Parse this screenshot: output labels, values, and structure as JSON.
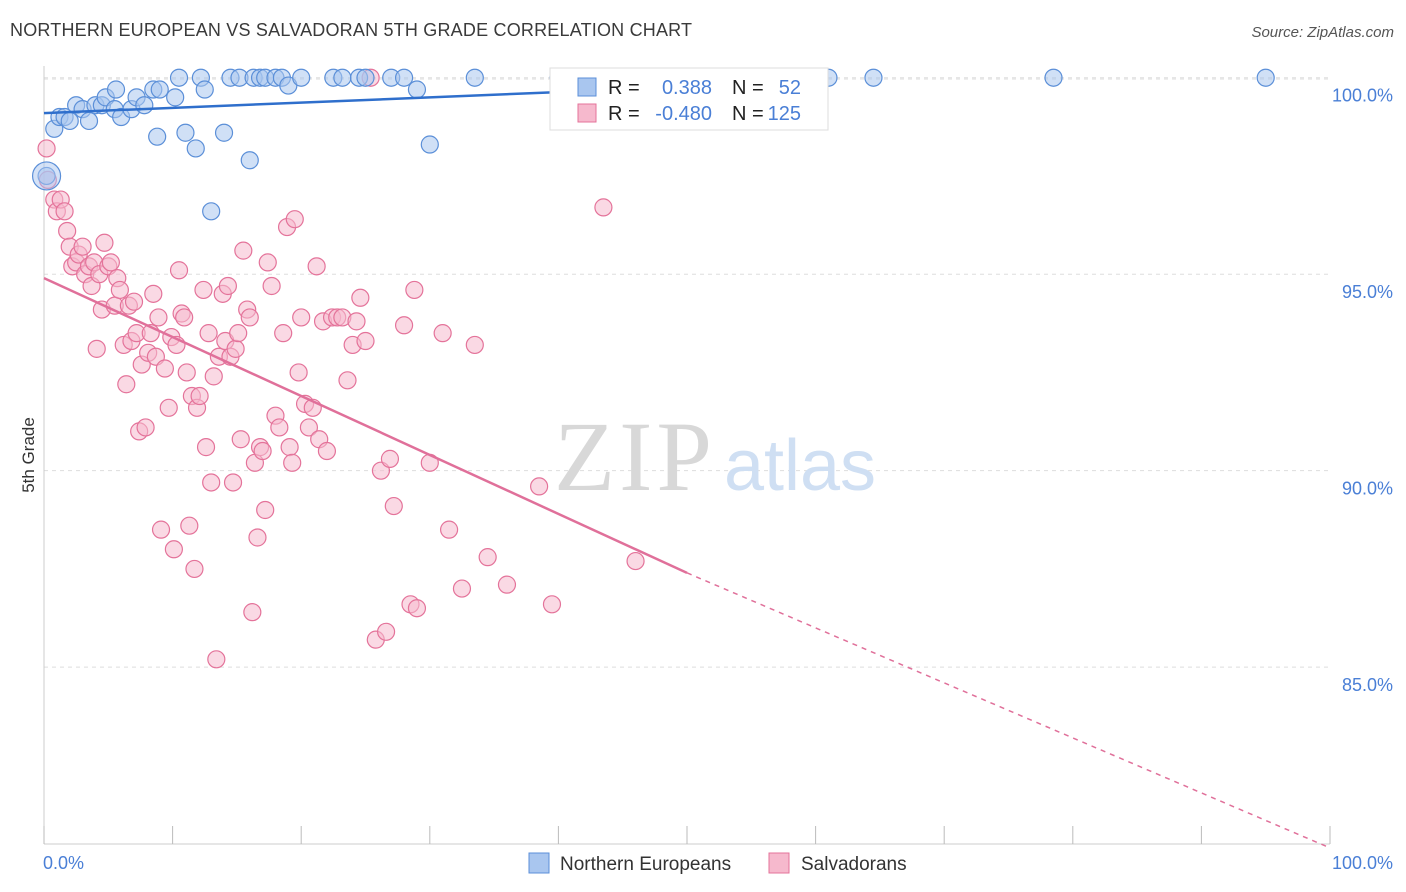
{
  "title": "NORTHERN EUROPEAN VS SALVADORAN 5TH GRADE CORRELATION CHART",
  "source": "Source: ZipAtlas.com",
  "watermark": {
    "zip": "ZIP",
    "atlas": "atlas"
  },
  "colors": {
    "blue": "#5b8fd8",
    "blue_fill": "#a9c6ef",
    "blue_line": "#2f6fcc",
    "pink": "#e4739a",
    "pink_fill": "#f6b9cd",
    "pink_line": "#e0709a",
    "tick_text": "#4a7fd6",
    "grid": "#dddddd"
  },
  "legend": {
    "r_label": "R =",
    "n_label": "N =",
    "rows": [
      {
        "r": "0.388",
        "n": "52"
      },
      {
        "r": "-0.480",
        "n": "125"
      }
    ]
  },
  "bottom_legend": [
    "Northern Europeans",
    "Salvadorans"
  ],
  "chart_data": {
    "type": "scatter",
    "title": "NORTHERN EUROPEAN VS SALVADORAN 5TH GRADE CORRELATION CHART",
    "xlabel": "",
    "ylabel": "5th Grade",
    "xlim": [
      0,
      100
    ],
    "ylim": [
      80.5,
      100.4
    ],
    "x_tick_labels": [
      "0.0%",
      "100.0%"
    ],
    "y_ticks": [
      85,
      90,
      95,
      100
    ],
    "y_tick_labels": [
      "85.0%",
      "90.0%",
      "95.0%",
      "100.0%"
    ],
    "grid": true,
    "legend_position": "top-center",
    "series": [
      {
        "name": "Northern Europeans",
        "r": 0.388,
        "n": 52,
        "trend": {
          "x0": 0,
          "y0": 99.1,
          "x1": 60,
          "y1": 99.9
        },
        "points": [
          [
            0.2,
            97.5
          ],
          [
            0.8,
            98.7
          ],
          [
            1.2,
            99.0
          ],
          [
            1.6,
            99.0
          ],
          [
            2.0,
            98.9
          ],
          [
            2.5,
            99.3
          ],
          [
            3.0,
            99.2
          ],
          [
            3.5,
            98.9
          ],
          [
            4.0,
            99.3
          ],
          [
            4.5,
            99.3
          ],
          [
            4.8,
            99.5
          ],
          [
            5.5,
            99.2
          ],
          [
            5.6,
            99.7
          ],
          [
            6.0,
            99.0
          ],
          [
            6.8,
            99.2
          ],
          [
            7.2,
            99.5
          ],
          [
            7.8,
            99.3
          ],
          [
            8.5,
            99.7
          ],
          [
            8.8,
            98.5
          ],
          [
            9.0,
            99.7
          ],
          [
            10.2,
            99.5
          ],
          [
            10.5,
            100.0
          ],
          [
            11.0,
            98.6
          ],
          [
            11.8,
            98.2
          ],
          [
            12.2,
            100.0
          ],
          [
            12.5,
            99.7
          ],
          [
            13.0,
            96.6
          ],
          [
            14.0,
            98.6
          ],
          [
            14.5,
            100.0
          ],
          [
            15.2,
            100.0
          ],
          [
            16.0,
            97.9
          ],
          [
            16.3,
            100.0
          ],
          [
            16.8,
            100.0
          ],
          [
            17.2,
            100.0
          ],
          [
            18.0,
            100.0
          ],
          [
            18.5,
            100.0
          ],
          [
            19.0,
            99.8
          ],
          [
            20.0,
            100.0
          ],
          [
            22.5,
            100.0
          ],
          [
            23.2,
            100.0
          ],
          [
            24.5,
            100.0
          ],
          [
            25.0,
            100.0
          ],
          [
            27.0,
            100.0
          ],
          [
            28.0,
            100.0
          ],
          [
            29.0,
            99.7
          ],
          [
            30.0,
            98.3
          ],
          [
            33.5,
            100.0
          ],
          [
            40.0,
            100.0
          ],
          [
            61.0,
            100.0
          ],
          [
            64.5,
            100.0
          ],
          [
            78.5,
            100.0
          ],
          [
            95.0,
            100.0
          ]
        ]
      },
      {
        "name": "Salvadorans",
        "r": -0.48,
        "n": 125,
        "trend": {
          "x0": 0,
          "y0": 94.9,
          "x1": 50,
          "y1": 87.4,
          "dashed_to_x": 100,
          "dashed_to_y": 80.4
        },
        "points": [
          [
            0.2,
            98.2
          ],
          [
            0.3,
            97.4
          ],
          [
            0.8,
            96.9
          ],
          [
            1.0,
            96.6
          ],
          [
            1.3,
            96.9
          ],
          [
            1.6,
            96.6
          ],
          [
            1.8,
            96.1
          ],
          [
            2.0,
            95.7
          ],
          [
            2.2,
            95.2
          ],
          [
            2.5,
            95.3
          ],
          [
            2.7,
            95.5
          ],
          [
            3.0,
            95.7
          ],
          [
            3.2,
            95.0
          ],
          [
            3.5,
            95.2
          ],
          [
            3.7,
            94.7
          ],
          [
            3.9,
            95.3
          ],
          [
            4.1,
            93.1
          ],
          [
            4.3,
            95.0
          ],
          [
            4.5,
            94.1
          ],
          [
            4.7,
            95.8
          ],
          [
            5.0,
            95.2
          ],
          [
            5.2,
            95.3
          ],
          [
            5.5,
            94.2
          ],
          [
            5.7,
            94.9
          ],
          [
            5.9,
            94.6
          ],
          [
            6.2,
            93.2
          ],
          [
            6.4,
            92.2
          ],
          [
            6.6,
            94.2
          ],
          [
            6.8,
            93.3
          ],
          [
            7.0,
            94.3
          ],
          [
            7.2,
            93.5
          ],
          [
            7.4,
            91.0
          ],
          [
            7.6,
            92.7
          ],
          [
            7.9,
            91.1
          ],
          [
            8.1,
            93.0
          ],
          [
            8.3,
            93.5
          ],
          [
            8.5,
            94.5
          ],
          [
            8.7,
            92.9
          ],
          [
            8.9,
            93.9
          ],
          [
            9.1,
            88.5
          ],
          [
            9.4,
            92.6
          ],
          [
            9.7,
            91.6
          ],
          [
            9.9,
            93.4
          ],
          [
            10.1,
            88.0
          ],
          [
            10.3,
            93.2
          ],
          [
            10.5,
            95.1
          ],
          [
            10.7,
            94.0
          ],
          [
            10.9,
            93.9
          ],
          [
            11.1,
            92.5
          ],
          [
            11.3,
            88.6
          ],
          [
            11.5,
            91.9
          ],
          [
            11.7,
            87.5
          ],
          [
            11.9,
            91.6
          ],
          [
            12.1,
            91.9
          ],
          [
            12.4,
            94.6
          ],
          [
            12.6,
            90.6
          ],
          [
            12.8,
            93.5
          ],
          [
            13.0,
            89.7
          ],
          [
            13.2,
            92.4
          ],
          [
            13.4,
            85.2
          ],
          [
            13.6,
            92.9
          ],
          [
            13.9,
            94.5
          ],
          [
            14.1,
            93.3
          ],
          [
            14.3,
            94.7
          ],
          [
            14.5,
            92.9
          ],
          [
            14.7,
            89.7
          ],
          [
            14.9,
            93.1
          ],
          [
            15.1,
            93.5
          ],
          [
            15.3,
            90.8
          ],
          [
            15.5,
            95.6
          ],
          [
            15.8,
            94.1
          ],
          [
            16.0,
            93.9
          ],
          [
            16.2,
            86.4
          ],
          [
            16.4,
            90.2
          ],
          [
            16.6,
            88.3
          ],
          [
            16.8,
            90.6
          ],
          [
            17.0,
            90.5
          ],
          [
            17.2,
            89.0
          ],
          [
            17.4,
            95.3
          ],
          [
            17.7,
            94.7
          ],
          [
            18.0,
            91.4
          ],
          [
            18.3,
            91.1
          ],
          [
            18.6,
            93.5
          ],
          [
            18.9,
            96.2
          ],
          [
            19.1,
            90.6
          ],
          [
            19.3,
            90.2
          ],
          [
            19.5,
            96.4
          ],
          [
            19.8,
            92.5
          ],
          [
            20.0,
            93.9
          ],
          [
            20.3,
            91.7
          ],
          [
            20.6,
            91.1
          ],
          [
            20.9,
            91.6
          ],
          [
            21.2,
            95.2
          ],
          [
            21.4,
            90.8
          ],
          [
            21.7,
            93.8
          ],
          [
            22.0,
            90.5
          ],
          [
            22.4,
            93.9
          ],
          [
            22.8,
            93.9
          ],
          [
            23.2,
            93.9
          ],
          [
            23.6,
            92.3
          ],
          [
            24.0,
            93.2
          ],
          [
            24.3,
            93.8
          ],
          [
            24.6,
            94.4
          ],
          [
            25.0,
            93.3
          ],
          [
            25.4,
            100.0
          ],
          [
            25.8,
            85.7
          ],
          [
            26.2,
            90.0
          ],
          [
            26.6,
            85.9
          ],
          [
            26.9,
            90.3
          ],
          [
            27.2,
            89.1
          ],
          [
            28.0,
            93.7
          ],
          [
            28.5,
            86.6
          ],
          [
            28.8,
            94.6
          ],
          [
            29.0,
            86.5
          ],
          [
            30.0,
            90.2
          ],
          [
            31.0,
            93.5
          ],
          [
            31.5,
            88.5
          ],
          [
            32.5,
            87.0
          ],
          [
            33.5,
            93.2
          ],
          [
            34.5,
            87.8
          ],
          [
            36.0,
            87.1
          ],
          [
            38.5,
            89.6
          ],
          [
            39.5,
            86.6
          ],
          [
            43.5,
            96.7
          ],
          [
            46.0,
            87.7
          ]
        ]
      }
    ]
  }
}
